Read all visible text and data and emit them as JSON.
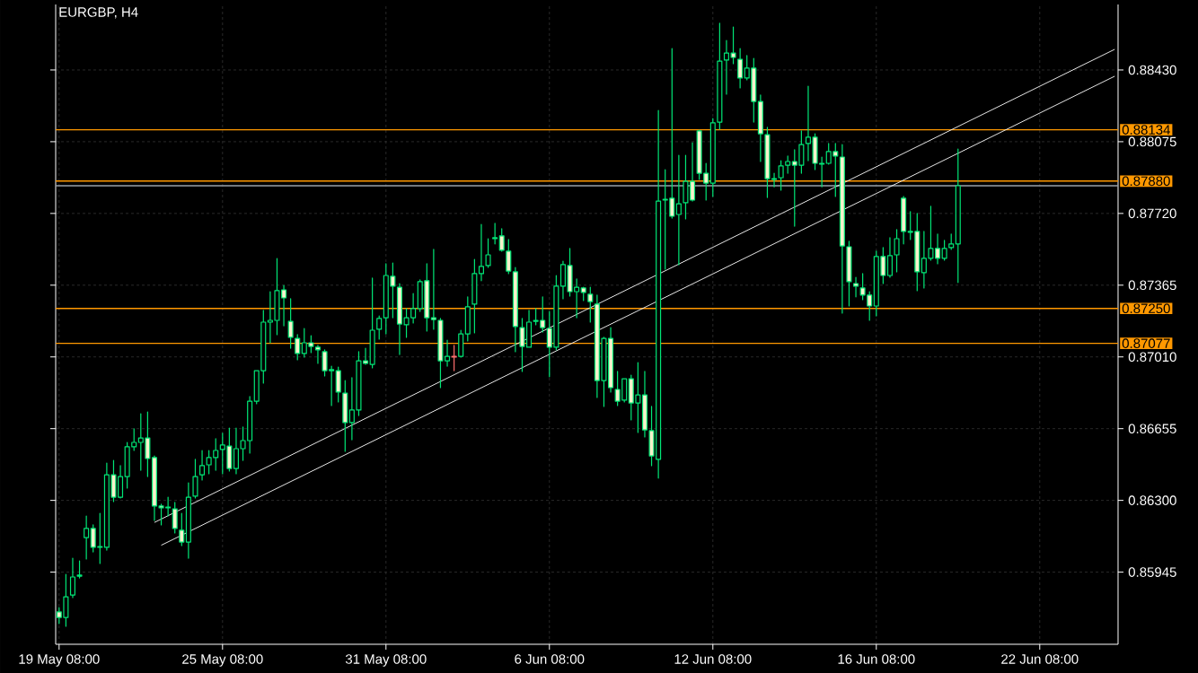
{
  "chart_data": {
    "type": "candlestick",
    "title": "EURGBP, H4",
    "categories": [
      "19 May 08:00",
      null,
      null,
      null,
      null,
      null,
      null,
      null,
      null,
      null,
      null,
      null,
      null,
      null,
      null,
      null,
      null,
      null,
      null,
      null,
      null,
      null,
      null,
      null,
      "25 May 08:00",
      null,
      null,
      null,
      null,
      null,
      null,
      null,
      null,
      null,
      null,
      null,
      null,
      null,
      null,
      null,
      null,
      null,
      null,
      null,
      null,
      null,
      null,
      null,
      "31 May 08:00",
      null,
      null,
      null,
      null,
      null,
      null,
      null,
      null,
      null,
      null,
      null,
      null,
      null,
      null,
      null,
      null,
      null,
      null,
      null,
      null,
      null,
      null,
      null,
      "6 Jun 08:00",
      null,
      null,
      null,
      null,
      null,
      null,
      null,
      null,
      null,
      null,
      null,
      null,
      null,
      null,
      null,
      null,
      null,
      null,
      null,
      null,
      null,
      null,
      null,
      "12 Jun 08:00",
      null,
      null,
      null,
      null,
      null,
      null,
      null,
      null,
      null,
      null,
      null,
      null,
      null,
      null,
      null,
      null,
      null,
      null,
      null,
      null,
      null,
      null,
      null,
      "16 Jun 08:00",
      null,
      null,
      null,
      null,
      null,
      null,
      null,
      null,
      null,
      null,
      null,
      null,
      null,
      null,
      null,
      null,
      null,
      null,
      null,
      null,
      null,
      null,
      null,
      "22 Jun 08:00",
      null,
      null,
      null,
      null,
      null,
      null,
      null,
      null,
      null,
      null,
      null
    ],
    "ohlc": [
      [
        0.85748,
        0.8577,
        0.8569,
        0.85721
      ],
      [
        0.85721,
        0.85934,
        0.85677,
        0.85823
      ],
      [
        0.85832,
        0.86014,
        0.85819,
        0.85921
      ],
      [
        0.85925,
        0.86001,
        0.85916,
        0.8593
      ],
      [
        0.86116,
        0.86223,
        0.8601,
        0.86161
      ],
      [
        0.86161,
        0.86179,
        0.86045,
        0.86068
      ],
      [
        0.86068,
        0.86236,
        0.85988,
        0.86072
      ],
      [
        0.86068,
        0.86485,
        0.86054,
        0.86427
      ],
      [
        0.86427,
        0.86498,
        0.86294,
        0.86316
      ],
      [
        0.86316,
        0.86472,
        0.86312,
        0.86418
      ],
      [
        0.86418,
        0.86587,
        0.86361,
        0.86565
      ],
      [
        0.86565,
        0.86654,
        0.86547,
        0.86587
      ],
      [
        0.86587,
        0.86729,
        0.86449,
        0.86609
      ],
      [
        0.86609,
        0.86738,
        0.86418,
        0.86507
      ],
      [
        0.86512,
        0.8652,
        0.86201,
        0.86272
      ],
      [
        0.86272,
        0.86281,
        0.86179,
        0.86263
      ],
      [
        0.86267,
        0.86316,
        0.86223,
        0.86263
      ],
      [
        0.86258,
        0.8629,
        0.86139,
        0.86161
      ],
      [
        0.86152,
        0.86236,
        0.86076,
        0.86094
      ],
      [
        0.86094,
        0.86387,
        0.86014,
        0.86316
      ],
      [
        0.86321,
        0.86503,
        0.86312,
        0.86418
      ],
      [
        0.86427,
        0.86547,
        0.86401,
        0.86472
      ],
      [
        0.86476,
        0.86547,
        0.86432,
        0.86512
      ],
      [
        0.86512,
        0.86605,
        0.86449,
        0.86547
      ],
      [
        0.86552,
        0.86632,
        0.86432,
        0.86574
      ],
      [
        0.86569,
        0.86658,
        0.86445,
        0.86458
      ],
      [
        0.86458,
        0.86658,
        0.86432,
        0.86556
      ],
      [
        0.86556,
        0.86663,
        0.86498,
        0.86596
      ],
      [
        0.86596,
        0.86814,
        0.86534,
        0.86791
      ],
      [
        0.86791,
        0.86942,
        0.86778,
        0.86942
      ],
      [
        0.86942,
        0.8724,
        0.8688,
        0.87182
      ],
      [
        0.87182,
        0.87333,
        0.8708,
        0.87191
      ],
      [
        0.87191,
        0.87497,
        0.8712,
        0.87338
      ],
      [
        0.87342,
        0.87364,
        0.87164,
        0.87302
      ],
      [
        0.87186,
        0.87298,
        0.87053,
        0.87107
      ],
      [
        0.87102,
        0.8712,
        0.86996,
        0.87027
      ],
      [
        0.87027,
        0.87151,
        0.87009,
        0.8708
      ],
      [
        0.8708,
        0.87115,
        0.87031,
        0.87062
      ],
      [
        0.87058,
        0.87067,
        0.86978,
        0.87045
      ],
      [
        0.87036,
        0.87045,
        0.86916,
        0.86942
      ],
      [
        0.86942,
        0.86964,
        0.86769,
        0.86947
      ],
      [
        0.86942,
        0.8696,
        0.86787,
        0.86836
      ],
      [
        0.86831,
        0.86893,
        0.86543,
        0.86685
      ],
      [
        0.86685,
        0.86907,
        0.866,
        0.86747
      ],
      [
        0.86747,
        0.87036,
        0.8672,
        0.86991
      ],
      [
        0.86991,
        0.87053,
        0.86973,
        0.86978
      ],
      [
        0.86973,
        0.874,
        0.86956,
        0.87142
      ],
      [
        0.87147,
        0.87213,
        0.87098,
        0.872
      ],
      [
        0.87204,
        0.87471,
        0.87124,
        0.87413
      ],
      [
        0.87409,
        0.87475,
        0.87204,
        0.8736
      ],
      [
        0.87355,
        0.87373,
        0.87022,
        0.87173
      ],
      [
        0.87169,
        0.87249,
        0.87107,
        0.87204
      ],
      [
        0.87204,
        0.87324,
        0.87178,
        0.87249
      ],
      [
        0.87249,
        0.87391,
        0.87235,
        0.87382
      ],
      [
        0.87387,
        0.87471,
        0.87138,
        0.87204
      ],
      [
        0.87204,
        0.87542,
        0.87147,
        0.87195
      ],
      [
        0.87191,
        0.872,
        0.86858,
        0.86991
      ],
      [
        0.86991,
        0.87093,
        0.86964,
        0.87013
      ],
      [
        0.87013,
        0.87067,
        0.86942,
        0.87009
      ],
      [
        0.87013,
        0.87142,
        0.87009,
        0.87124
      ],
      [
        0.87124,
        0.87307,
        0.87089,
        0.87258
      ],
      [
        0.87271,
        0.87493,
        0.87129,
        0.87422
      ],
      [
        0.87422,
        0.87666,
        0.87387,
        0.87458
      ],
      [
        0.87462,
        0.87595,
        0.87453,
        0.87515
      ],
      [
        0.87595,
        0.87671,
        0.87569,
        0.876
      ],
      [
        0.87609,
        0.87644,
        0.87533,
        0.87538
      ],
      [
        0.87533,
        0.87591,
        0.87422,
        0.87435
      ],
      [
        0.87431,
        0.87453,
        0.87036,
        0.8716
      ],
      [
        0.87155,
        0.872,
        0.86938,
        0.87062
      ],
      [
        0.87058,
        0.8724,
        0.87058,
        0.87182
      ],
      [
        0.87186,
        0.87249,
        0.87169,
        0.87191
      ],
      [
        0.87191,
        0.87307,
        0.87133,
        0.87155
      ],
      [
        0.87151,
        0.87235,
        0.86912,
        0.87058
      ],
      [
        0.87058,
        0.87413,
        0.87045,
        0.8736
      ],
      [
        0.8736,
        0.87484,
        0.87298,
        0.87467
      ],
      [
        0.87462,
        0.87547,
        0.87311,
        0.87333
      ],
      [
        0.87333,
        0.87396,
        0.87204,
        0.87355
      ],
      [
        0.87351,
        0.87355,
        0.87289,
        0.87329
      ],
      [
        0.8732,
        0.87355,
        0.87182,
        0.87284
      ],
      [
        0.87271,
        0.87316,
        0.86809,
        0.86893
      ],
      [
        0.86893,
        0.87107,
        0.86765,
        0.87102
      ],
      [
        0.87102,
        0.87155,
        0.86836,
        0.86858
      ],
      [
        0.86849,
        0.86938,
        0.86769,
        0.86791
      ],
      [
        0.86796,
        0.86902,
        0.86787,
        0.86902
      ],
      [
        0.86902,
        0.8692,
        0.86698,
        0.86782
      ],
      [
        0.86782,
        0.86982,
        0.86636,
        0.86822
      ],
      [
        0.86822,
        0.86938,
        0.86614,
        0.86649
      ],
      [
        0.86645,
        0.86765,
        0.86472,
        0.8652
      ],
      [
        0.86503,
        0.8823,
        0.8641,
        0.87781
      ],
      [
        0.87786,
        0.87937,
        0.87444,
        0.8779
      ],
      [
        0.87795,
        0.88536,
        0.87697,
        0.87706
      ],
      [
        0.87715,
        0.88008,
        0.87466,
        0.87768
      ],
      [
        0.87773,
        0.88008,
        0.87693,
        0.87879
      ],
      [
        0.87879,
        0.8807,
        0.87781,
        0.87786
      ],
      [
        0.88128,
        0.88132,
        0.87888,
        0.87919
      ],
      [
        0.87919,
        0.87968,
        0.87786,
        0.8787
      ],
      [
        0.8787,
        0.8819,
        0.87804,
        0.88168
      ],
      [
        0.88172,
        0.88661,
        0.88137,
        0.88474
      ],
      [
        0.88479,
        0.88576,
        0.8831,
        0.88514
      ],
      [
        0.88514,
        0.88643,
        0.88461,
        0.88492
      ],
      [
        0.88483,
        0.88536,
        0.88341,
        0.8839
      ],
      [
        0.8839,
        0.88501,
        0.88381,
        0.88439
      ],
      [
        0.88439,
        0.88487,
        0.88172,
        0.88274
      ],
      [
        0.88274,
        0.88306,
        0.87977,
        0.88114
      ],
      [
        0.8811,
        0.88146,
        0.87799,
        0.87892
      ],
      [
        0.87892,
        0.87919,
        0.87852,
        0.87888
      ],
      [
        0.87897,
        0.87981,
        0.87835,
        0.87955
      ],
      [
        0.87959,
        0.88004,
        0.87919,
        0.87977
      ],
      [
        0.87977,
        0.88035,
        0.87657,
        0.87959
      ],
      [
        0.87959,
        0.88128,
        0.87919,
        0.88061
      ],
      [
        0.88066,
        0.8835,
        0.87981,
        0.88097
      ],
      [
        0.88097,
        0.88114,
        0.87937,
        0.87968
      ],
      [
        0.87968,
        0.87999,
        0.87852,
        0.87964
      ],
      [
        0.87968,
        0.88066,
        0.87964,
        0.88026
      ],
      [
        0.88026,
        0.88066,
        0.87804,
        0.88004
      ],
      [
        0.87999,
        0.88061,
        0.87227,
        0.87559
      ],
      [
        0.87555,
        0.87582,
        0.87262,
        0.87382
      ],
      [
        0.87373,
        0.87404,
        0.87307,
        0.8736
      ],
      [
        0.87351,
        0.87422,
        0.87293,
        0.87316
      ],
      [
        0.87316,
        0.87333,
        0.87191,
        0.87262
      ],
      [
        0.87262,
        0.87533,
        0.87213,
        0.87507
      ],
      [
        0.87507,
        0.87551,
        0.87373,
        0.87413
      ],
      [
        0.87413,
        0.876,
        0.87404,
        0.87511
      ],
      [
        0.87515,
        0.8764,
        0.87431,
        0.87595
      ],
      [
        0.87795,
        0.87804,
        0.87569,
        0.87631
      ],
      [
        0.87631,
        0.87729,
        0.87591,
        0.87627
      ],
      [
        0.87631,
        0.8772,
        0.87338,
        0.87431
      ],
      [
        0.87427,
        0.87631,
        0.87351,
        0.87498
      ],
      [
        0.87498,
        0.87755,
        0.87489,
        0.87547
      ],
      [
        0.87547,
        0.87618,
        0.87471,
        0.87498
      ],
      [
        0.87498,
        0.87587,
        0.87489,
        0.87547
      ],
      [
        0.87551,
        0.87618,
        0.87542,
        0.87569
      ],
      [
        0.87569,
        0.88039,
        0.87378,
        0.87857
      ],
      null,
      null,
      null,
      null,
      null,
      null,
      null,
      null,
      null,
      null,
      null,
      null,
      null,
      null,
      null,
      null,
      null,
      null,
      null,
      null,
      null,
      null,
      null
    ],
    "colors": [
      "#00e676",
      "#00e676",
      "#00e676",
      "#00e676",
      "#00e676",
      "#00e676",
      "#00e676",
      "#00e676",
      "#00e676",
      "#00e676",
      "#00e676",
      "#00e676",
      "#00e676",
      "#00e676",
      "#00e676",
      "#00e676",
      "#00e676",
      "#00e676",
      "#00e676",
      "#00e676",
      "#00e676",
      "#00e676",
      "#00e676",
      "#00e676",
      "#00e676",
      "#00e676",
      "#00e676",
      "#00e676",
      "#00e676",
      "#00e676",
      "#00e676",
      "#00e676",
      "#00e676",
      "#00e676",
      "#00e676",
      "#00e676",
      "#00e676",
      "#00e676",
      "#00e676",
      "#00e676",
      "#00e676",
      "#00e676",
      "#00e676",
      "#00e676",
      "#00e676",
      "#00e676",
      "#00e676",
      "#00e676",
      "#00e676",
      "#00e676",
      "#00e676",
      "#00e676",
      "#00e676",
      "#00e676",
      "#00e676",
      "#00e676",
      "#00e676",
      "#00e676",
      "#ff6f6f",
      "#00e676",
      "#00e676",
      "#00e676",
      "#00e676",
      "#00e676",
      "#00e676",
      "#00e676",
      "#00e676",
      "#00e676",
      "#00e676",
      "#00e676",
      "#00e676",
      "#00e676",
      "#00e676",
      "#00e676",
      "#00e676",
      "#00e676",
      "#00e676",
      "#00e676",
      "#00e676",
      "#00e676",
      "#00e676",
      "#00e676",
      "#00e676",
      "#00e676",
      "#00e676",
      "#00e676",
      "#00e676",
      "#00e676",
      "#00e676",
      "#00e676",
      "#00e676",
      "#00e676",
      "#00e676",
      "#00e676",
      "#00e676",
      "#00e676",
      "#00e676",
      "#00e676",
      "#00e676",
      "#00e676",
      "#00e676",
      "#00e676",
      "#00e676",
      "#00e676",
      "#00e676",
      "#00e676",
      "#00e676",
      "#00e676",
      "#00e676",
      "#00e676",
      "#00e676",
      "#00e676",
      "#00e676",
      "#00e676",
      "#00e676",
      "#00e676",
      "#00e676",
      "#00e676",
      "#00e676",
      "#00e676",
      "#00e676",
      "#00e676",
      "#00e676",
      "#00e676",
      "#00e676",
      "#00e676",
      "#00e676",
      "#00e676",
      "#00e676",
      "#00e676",
      "#00e676",
      "#00e676",
      "#00e676",
      null,
      null,
      null,
      null,
      null,
      null,
      null,
      null,
      null,
      null,
      null,
      null,
      null,
      null,
      null,
      null,
      null,
      null,
      null,
      null,
      null,
      null,
      null
    ],
    "color": "#f8f2cc",
    "series": [
      {
        "type": "line",
        "values": [
          null,
          null,
          null,
          null,
          null,
          null,
          null,
          null,
          null,
          null,
          null,
          null,
          null,
          null,
          0.86191,
          null,
          null,
          null,
          null,
          null,
          null,
          null,
          null,
          null,
          null,
          null,
          null,
          null,
          null,
          null,
          null,
          null,
          null,
          null,
          null,
          null,
          null,
          null,
          null,
          null,
          null,
          null,
          null,
          null,
          null,
          null,
          null,
          null,
          null,
          null,
          null,
          null,
          null,
          null,
          null,
          null,
          null,
          null,
          null,
          null,
          null,
          null,
          null,
          null,
          null,
          null,
          null,
          null,
          null,
          null,
          null,
          null,
          null,
          null,
          null,
          null,
          null,
          null,
          null,
          null,
          null,
          null,
          null,
          null,
          null,
          null,
          null,
          null,
          null,
          null,
          null,
          null,
          null,
          null,
          null,
          null,
          null,
          null,
          null,
          null,
          null,
          null,
          null,
          null,
          null,
          null,
          null,
          null,
          null,
          null,
          null,
          null,
          null,
          null,
          null,
          null,
          null,
          null,
          null,
          null,
          null,
          null,
          null,
          null,
          null,
          null,
          null,
          null,
          null,
          null,
          null,
          null,
          null,
          null,
          null,
          null,
          null,
          null,
          null,
          null,
          null,
          null,
          null,
          null,
          null,
          null,
          null,
          null,
          null,
          null,
          null,
          null,
          null,
          null,
          null,
          0.88532
        ],
        "color": "#ffffff"
      },
      {
        "type": "line",
        "values": [
          null,
          null,
          null,
          null,
          null,
          null,
          null,
          null,
          null,
          null,
          null,
          null,
          null,
          null,
          null,
          0.86078,
          null,
          null,
          null,
          null,
          null,
          null,
          null,
          null,
          null,
          null,
          null,
          null,
          null,
          null,
          null,
          null,
          null,
          null,
          null,
          null,
          null,
          null,
          null,
          null,
          null,
          null,
          null,
          null,
          null,
          null,
          null,
          null,
          null,
          null,
          null,
          null,
          null,
          null,
          null,
          null,
          null,
          null,
          null,
          null,
          null,
          null,
          null,
          null,
          null,
          null,
          null,
          null,
          null,
          null,
          null,
          null,
          null,
          null,
          null,
          null,
          null,
          null,
          null,
          null,
          null,
          null,
          null,
          null,
          null,
          null,
          null,
          null,
          null,
          null,
          null,
          null,
          null,
          null,
          null,
          null,
          null,
          null,
          null,
          null,
          null,
          null,
          null,
          null,
          null,
          null,
          null,
          null,
          null,
          null,
          null,
          null,
          null,
          null,
          null,
          null,
          null,
          null,
          null,
          null,
          null,
          null,
          null,
          null,
          null,
          null,
          null,
          null,
          null,
          null,
          null,
          null,
          null,
          null,
          null,
          null,
          null,
          null,
          null,
          null,
          null,
          null,
          null,
          null,
          null,
          null,
          null,
          null,
          null,
          null,
          null,
          null,
          null,
          null,
          null,
          0.88399
        ],
        "color": "#ffffff"
      }
    ],
    "ref_lines": [
      {
        "axis": "y",
        "value": 0.88134,
        "label": "0.88134",
        "color": "#ff9800"
      },
      {
        "axis": "y",
        "value": 0.8788,
        "label": "0.87880",
        "color": "#ff9800"
      },
      {
        "axis": "y",
        "value": 0.8725,
        "label": "0.87250",
        "color": "#ff9800"
      },
      {
        "axis": "y",
        "value": 0.87077,
        "label": "0.87077",
        "color": "#ff9800"
      },
      {
        "axis": "y",
        "value": 0.87857,
        "color": "#9aa0a8"
      }
    ],
    "ylim": [
      0.85588,
      0.88754
    ],
    "yticks": [
      {
        "value": 0.85945,
        "label": "0.85945"
      },
      {
        "value": 0.863,
        "label": "0.86300"
      },
      {
        "value": 0.86655,
        "label": "0.86655"
      },
      {
        "value": 0.8701,
        "label": "0.87010"
      },
      {
        "value": 0.87365,
        "label": "0.87365"
      },
      {
        "value": 0.8772,
        "label": "0.87720"
      },
      {
        "value": 0.88075,
        "label": "0.88075"
      },
      {
        "value": 0.8843,
        "label": "0.88430"
      }
    ],
    "grid": true
  }
}
